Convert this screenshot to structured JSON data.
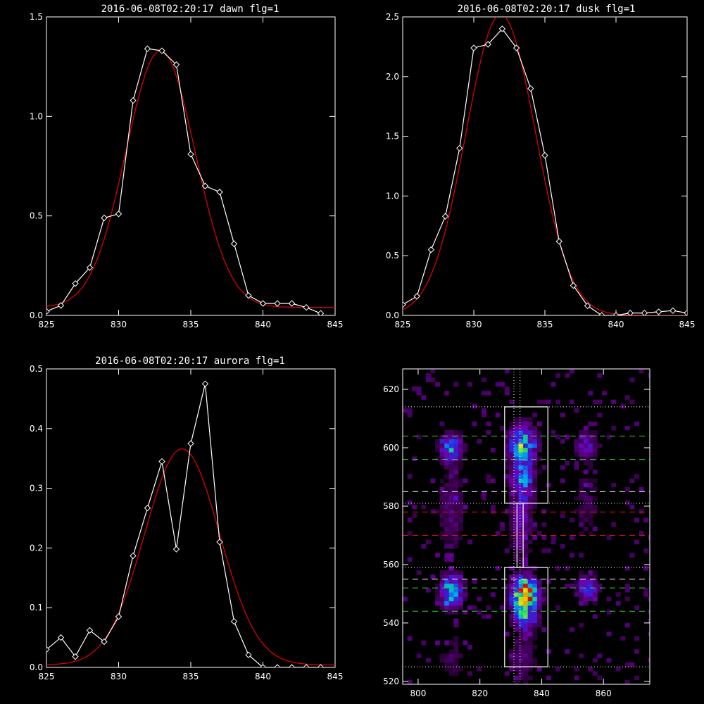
{
  "colors": {
    "background": "#000000",
    "axes": "#ffffff",
    "data_line": "#ffffff",
    "fit_line": "#dd0000",
    "guide_green": "#33cc33",
    "guide_red": "#dd1111",
    "guide_white": "#ffffff"
  },
  "chart_data": [
    {
      "type": "line",
      "title": "2016-06-08T02:20:17 dawn flg=1",
      "xlabel": "",
      "ylabel": "",
      "xlim": [
        825,
        845
      ],
      "ylim": [
        0,
        1.5
      ],
      "xticks": [
        "825",
        "830",
        "835",
        "840",
        "845"
      ],
      "yticks": [
        "0.0",
        "0.5",
        "1.0",
        "1.5"
      ],
      "grid": false,
      "series": [
        {
          "marker": "diamond",
          "x": [
            825,
            826,
            827,
            828,
            829,
            830,
            831,
            832,
            833,
            834,
            835,
            836,
            837,
            838,
            839,
            840,
            841,
            842,
            843,
            844
          ],
          "values": [
            0.02,
            0.05,
            0.16,
            0.24,
            0.49,
            0.51,
            1.08,
            1.34,
            1.33,
            1.26,
            0.81,
            0.65,
            0.62,
            0.36,
            0.1,
            0.06,
            0.06,
            0.06,
            0.04,
            0.01
          ]
        },
        {
          "marker": "none",
          "gaussian": {
            "amplitude": 1.29,
            "center": 832.9,
            "sigma": 2.4,
            "offset": 0.04
          }
        }
      ]
    },
    {
      "type": "line",
      "title": "2016-06-08T02:20:17 dusk flg=1",
      "xlabel": "",
      "ylabel": "",
      "xlim": [
        825,
        845
      ],
      "ylim": [
        0,
        2.5
      ],
      "xticks": [
        "825",
        "830",
        "835",
        "840",
        "845"
      ],
      "yticks": [
        "0.0",
        "0.5",
        "1.0",
        "1.5",
        "2.0",
        "2.5"
      ],
      "grid": false,
      "series": [
        {
          "marker": "diamond",
          "x": [
            825,
            826,
            827,
            828,
            829,
            830,
            831,
            832,
            833,
            834,
            835,
            836,
            837,
            838,
            839,
            840,
            841,
            842,
            843,
            844,
            845
          ],
          "values": [
            0.09,
            0.16,
            0.55,
            0.83,
            1.4,
            2.24,
            2.27,
            2.4,
            2.24,
            1.9,
            1.34,
            0.62,
            0.25,
            0.08,
            0.0,
            0.0,
            0.02,
            0.02,
            0.03,
            0.04,
            0.02
          ]
        },
        {
          "marker": "none",
          "gaussian": {
            "amplitude": 2.52,
            "center": 831.9,
            "sigma": 2.45,
            "offset": 0.0
          }
        }
      ]
    },
    {
      "type": "line",
      "title": "2016-06-08T02:20:17 aurora flg=1",
      "xlabel": "",
      "ylabel": "",
      "xlim": [
        825,
        845
      ],
      "ylim": [
        0,
        0.5
      ],
      "xticks": [
        "825",
        "830",
        "835",
        "840",
        "845"
      ],
      "yticks": [
        "0.0",
        "0.1",
        "0.2",
        "0.3",
        "0.4",
        "0.5"
      ],
      "grid": false,
      "series": [
        {
          "marker": "diamond",
          "x": [
            825,
            826,
            827,
            828,
            829,
            830,
            831,
            832,
            833,
            834,
            835,
            836,
            837,
            838,
            839,
            840,
            841,
            842,
            843,
            844
          ],
          "values": [
            0.03,
            0.05,
            0.018,
            0.062,
            0.043,
            0.085,
            0.187,
            0.267,
            0.345,
            0.198,
            0.375,
            0.475,
            0.21,
            0.077,
            0.021,
            0.0,
            0.0,
            0.0,
            0.0,
            0.0
          ]
        },
        {
          "marker": "none",
          "gaussian": {
            "amplitude": 0.362,
            "center": 834.4,
            "sigma": 2.6,
            "offset": 0.004
          }
        }
      ]
    },
    {
      "type": "heatmap",
      "title": "",
      "xlabel": "",
      "ylabel": "",
      "xlim": [
        795,
        875
      ],
      "ylim": [
        519,
        627
      ],
      "xticks": [
        "800",
        "820",
        "840",
        "860"
      ],
      "yticks": [
        "520",
        "540",
        "560",
        "580",
        "600",
        "620"
      ],
      "bins": {
        "dx": 1.5,
        "dy": 1.5,
        "seed": 7
      },
      "emission_spots": [
        {
          "x": 810,
          "y": 599,
          "sx": 2.5,
          "sy": 3,
          "amplitude": 0.42
        },
        {
          "x": 833,
          "y": 600,
          "sx": 2.8,
          "sy": 4.5,
          "amplitude": 0.55
        },
        {
          "x": 833,
          "y": 588,
          "sx": 2.5,
          "sy": 4,
          "amplitude": 0.3
        },
        {
          "x": 854,
          "y": 600,
          "sx": 2.5,
          "sy": 3,
          "amplitude": 0.22
        },
        {
          "x": 810,
          "y": 550,
          "sx": 2.5,
          "sy": 3.5,
          "amplitude": 0.55
        },
        {
          "x": 834,
          "y": 549,
          "sx": 2.8,
          "sy": 3.5,
          "amplitude": 1.0
        },
        {
          "x": 834,
          "y": 541,
          "sx": 2.5,
          "sy": 3,
          "amplitude": 0.4
        },
        {
          "x": 854,
          "y": 551,
          "sx": 2.5,
          "sy": 3,
          "amplitude": 0.3
        },
        {
          "x": 810,
          "y": 578,
          "sx": 3,
          "sy": 10,
          "amplitude": 0.12
        },
        {
          "x": 833,
          "y": 575,
          "sx": 2.5,
          "sy": 10,
          "amplitude": 0.18
        },
        {
          "x": 810,
          "y": 528,
          "sx": 3,
          "sy": 6,
          "amplitude": 0.08
        },
        {
          "x": 833,
          "y": 527,
          "sx": 3,
          "sy": 6,
          "amplitude": 0.12
        },
        {
          "x": 854,
          "y": 580,
          "sx": 3,
          "sy": 10,
          "amplitude": 0.08
        }
      ],
      "boxes": [
        {
          "x0": 828,
          "x1": 842,
          "y0": 581,
          "y1": 614
        },
        {
          "x0": 828,
          "x1": 842,
          "y0": 525,
          "y1": 559
        }
      ],
      "connector": {
        "x0": 832,
        "x1": 834,
        "y0": 559,
        "y1": 581
      },
      "vertical_dotted": [
        831,
        833
      ],
      "hlines": [
        {
          "y": 614,
          "color": "white",
          "style": "dotted"
        },
        {
          "y": 604,
          "color": "green",
          "style": "dashed"
        },
        {
          "y": 596,
          "color": "green",
          "style": "dashed"
        },
        {
          "y": 585,
          "color": "white",
          "style": "dashed"
        },
        {
          "y": 581,
          "color": "white",
          "style": "dotted"
        },
        {
          "y": 578,
          "color": "red",
          "style": "dashed"
        },
        {
          "y": 570,
          "color": "red",
          "style": "dashed"
        },
        {
          "y": 559,
          "color": "white",
          "style": "dotted"
        },
        {
          "y": 555,
          "color": "white",
          "style": "dashed"
        },
        {
          "y": 552,
          "color": "green",
          "style": "dashed"
        },
        {
          "y": 544,
          "color": "green",
          "style": "dashed"
        },
        {
          "y": 525,
          "color": "white",
          "style": "dotted"
        }
      ]
    }
  ]
}
